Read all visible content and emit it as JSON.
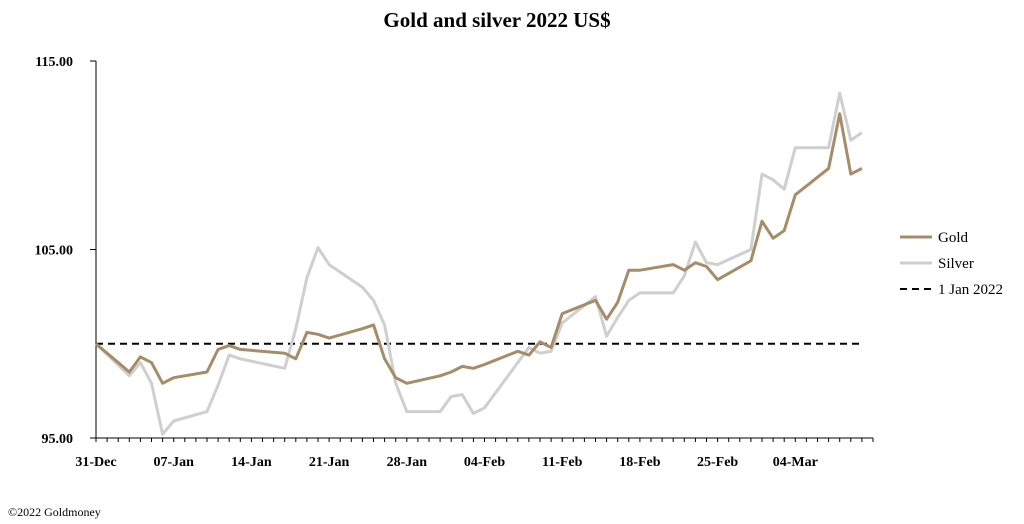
{
  "chart_data": {
    "type": "line",
    "title": "Gold and silver 2022  US$",
    "footer": "©2022 Goldmoney",
    "ylim": [
      95,
      115
    ],
    "yticks": [
      95,
      105,
      115
    ],
    "ytick_labels": [
      "95.00",
      "105.00",
      "115.00"
    ],
    "xlim": [
      0,
      70
    ],
    "xticks": [
      0,
      7,
      14,
      21,
      28,
      35,
      42,
      49,
      56,
      63
    ],
    "xtick_labels": [
      "31-Dec",
      "07-Jan",
      "14-Jan",
      "21-Jan",
      "28-Jan",
      "04-Feb",
      "11-Feb",
      "18-Feb",
      "25-Feb",
      "04-Mar"
    ],
    "grid": false,
    "legend_position": "right",
    "colors": {
      "gold": "#a48d68",
      "silver": "#cfcfcf",
      "reference": "#000000"
    },
    "series": [
      {
        "name": "Gold",
        "style": "solid",
        "x": [
          0,
          3,
          4,
          5,
          6,
          7,
          10,
          11,
          12,
          13,
          17,
          18,
          19,
          20,
          21,
          24,
          25,
          26,
          27,
          28,
          31,
          32,
          33,
          34,
          35,
          38,
          39,
          40,
          41,
          42,
          45,
          46,
          47,
          48,
          49,
          52,
          53,
          54,
          55,
          56,
          59,
          60,
          61,
          62,
          63,
          66,
          67,
          68,
          69
        ],
        "y": [
          100.0,
          98.5,
          99.3,
          99.0,
          97.9,
          98.2,
          98.5,
          99.7,
          99.9,
          99.7,
          99.5,
          99.2,
          100.6,
          100.5,
          100.3,
          100.8,
          101.0,
          99.2,
          98.2,
          97.9,
          98.3,
          98.5,
          98.8,
          98.7,
          98.9,
          99.6,
          99.4,
          100.1,
          99.8,
          101.6,
          102.3,
          101.3,
          102.2,
          103.9,
          103.9,
          104.2,
          103.9,
          104.3,
          104.1,
          103.4,
          104.4,
          106.5,
          105.6,
          106.0,
          107.9,
          109.3,
          112.2,
          109.0,
          109.3
        ]
      },
      {
        "name": "Silver",
        "style": "solid",
        "x": [
          0,
          3,
          4,
          5,
          6,
          7,
          10,
          11,
          12,
          13,
          17,
          18,
          19,
          20,
          21,
          24,
          25,
          26,
          27,
          28,
          31,
          32,
          33,
          34,
          35,
          38,
          39,
          40,
          41,
          42,
          45,
          46,
          47,
          48,
          49,
          52,
          53,
          54,
          55,
          56,
          59,
          60,
          61,
          62,
          63,
          66,
          67,
          68,
          69
        ],
        "y": [
          100.0,
          98.3,
          99.0,
          97.9,
          95.2,
          95.9,
          96.4,
          97.8,
          99.4,
          99.2,
          98.7,
          100.8,
          103.5,
          105.1,
          104.2,
          103.0,
          102.3,
          101.0,
          97.9,
          96.4,
          96.4,
          97.2,
          97.3,
          96.3,
          96.6,
          99.0,
          99.8,
          99.5,
          99.6,
          101.1,
          102.5,
          100.4,
          101.4,
          102.3,
          102.7,
          102.7,
          103.6,
          105.4,
          104.3,
          104.2,
          105.0,
          109.0,
          108.7,
          108.2,
          110.4,
          110.4,
          113.3,
          110.8,
          111.2
        ]
      },
      {
        "name": "1 Jan 2022",
        "style": "dashed",
        "x": [
          0,
          69
        ],
        "y": [
          100.0,
          100.0
        ]
      }
    ]
  }
}
